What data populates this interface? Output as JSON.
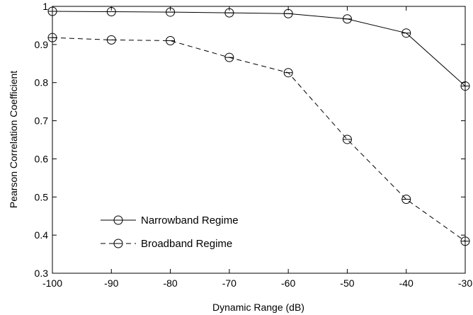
{
  "chart_data": {
    "type": "line",
    "xlabel": "Dynamic Range (dB)",
    "ylabel": "Pearson Correlation Coefficient",
    "xlim": [
      -100,
      -30
    ],
    "ylim": [
      0.3,
      1.0
    ],
    "x_ticks": [
      -100,
      -90,
      -80,
      -70,
      -60,
      -50,
      -40,
      -30
    ],
    "y_ticks": [
      0.3,
      0.4,
      0.5,
      0.6,
      0.7,
      0.8,
      0.9,
      1.0
    ],
    "x_tick_labels": [
      "-100",
      "-90",
      "-80",
      "-70",
      "-60",
      "-50",
      "-40",
      "-30"
    ],
    "y_tick_labels": [
      "0.3",
      "0.4",
      "0.5",
      "0.6",
      "0.7",
      "0.8",
      "0.9",
      "1"
    ],
    "grid": false,
    "legend_position": "bottom-left",
    "x": [
      -100,
      -90,
      -80,
      -70,
      -60,
      -50,
      -40,
      -30
    ],
    "series": [
      {
        "name": "Narrowband Regime",
        "values": [
          0.987,
          0.986,
          0.985,
          0.983,
          0.981,
          0.967,
          0.93,
          0.791
        ],
        "line_style": "solid",
        "marker": "circle-horizontal-bar",
        "color": "#000000"
      },
      {
        "name": "Broadband Regime",
        "values": [
          0.918,
          0.912,
          0.91,
          0.866,
          0.826,
          0.651,
          0.494,
          0.384
        ],
        "line_style": "dashed",
        "marker": "circle-horizontal-bar",
        "color": "#000000"
      }
    ]
  }
}
